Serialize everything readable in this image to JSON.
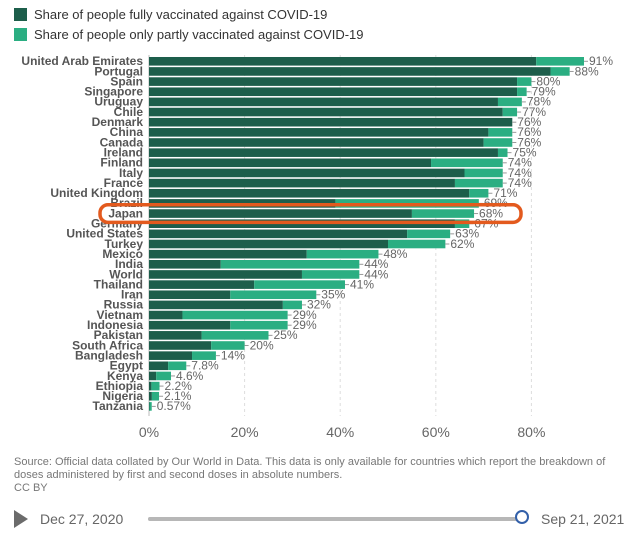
{
  "legend": {
    "full_label": "Share of people fully vaccinated against COVID-19",
    "partial_label": "Share of people only partly vaccinated against COVID-19"
  },
  "colors": {
    "full": "#1d5e4b",
    "partial": "#2bae82",
    "highlight": "#e35a1e",
    "axis": "#cccccc",
    "grid": "#dddddd"
  },
  "chart_data": {
    "type": "bar",
    "orientation": "horizontal",
    "stacked": true,
    "xlim": [
      0,
      91
    ],
    "x_ticks": [
      0,
      20,
      40,
      60,
      80
    ],
    "x_tick_labels": [
      "0%",
      "20%",
      "40%",
      "60%",
      "80%"
    ],
    "highlight_category": "Japan",
    "categories": [
      "United Arab Emirates",
      "Portugal",
      "Spain",
      "Singapore",
      "Uruguay",
      "Chile",
      "Denmark",
      "China",
      "Canada",
      "Ireland",
      "Finland",
      "Italy",
      "France",
      "United Kingdom",
      "Brazil",
      "Japan",
      "Germany",
      "United States",
      "Turkey",
      "Mexico",
      "India",
      "World",
      "Thailand",
      "Iran",
      "Russia",
      "Vietnam",
      "Indonesia",
      "Pakistan",
      "South Africa",
      "Bangladesh",
      "Egypt",
      "Kenya",
      "Ethiopia",
      "Nigeria",
      "Tanzania"
    ],
    "series": [
      {
        "name": "Share of people fully vaccinated against COVID-19",
        "values": [
          81,
          84,
          77,
          77,
          73,
          74,
          76,
          71,
          70,
          73,
          59,
          66,
          64,
          67,
          39,
          55,
          64,
          54,
          50,
          33,
          15,
          32,
          22,
          17,
          28,
          7,
          17,
          11,
          13,
          9,
          4,
          1.5,
          0.5,
          0.6,
          0.1
        ]
      },
      {
        "name": "Share of people only partly vaccinated against COVID-19",
        "values": [
          10,
          4,
          3,
          2,
          5,
          3,
          0,
          5,
          6,
          2,
          15,
          8,
          10,
          4,
          30,
          13,
          3,
          9,
          12,
          15,
          29,
          12,
          19,
          18,
          4,
          22,
          12,
          14,
          7,
          5,
          3.8,
          3.1,
          1.7,
          1.5,
          0.47
        ]
      }
    ],
    "totals": [
      91,
      88,
      80,
      79,
      78,
      77,
      76,
      76,
      76,
      75,
      74,
      74,
      74,
      71,
      69,
      68,
      67,
      63,
      62,
      48,
      44,
      44,
      41,
      35,
      32,
      29,
      29,
      25,
      20,
      14,
      7.8,
      4.6,
      2.2,
      2.1,
      0.57
    ],
    "value_labels": [
      "91%",
      "88%",
      "80%",
      "79%",
      "78%",
      "77%",
      "76%",
      "76%",
      "76%",
      "75%",
      "74%",
      "74%",
      "74%",
      "71%",
      "69%",
      "68%",
      "67%",
      "63%",
      "62%",
      "48%",
      "44%",
      "44%",
      "41%",
      "35%",
      "32%",
      "29%",
      "29%",
      "25%",
      "20%",
      "14%",
      "7.8%",
      "4.6%",
      "2.2%",
      "2.1%",
      "0.57%"
    ]
  },
  "source": {
    "text": "Source: Official data collated by Our World in Data. This data is only available for countries which report the breakdown of doses administered by first and second doses in absolute numbers.",
    "license": "CC BY"
  },
  "timeline": {
    "start_date": "Dec 27, 2020",
    "end_date": "Sep 21, 2021",
    "position": 1.0
  }
}
